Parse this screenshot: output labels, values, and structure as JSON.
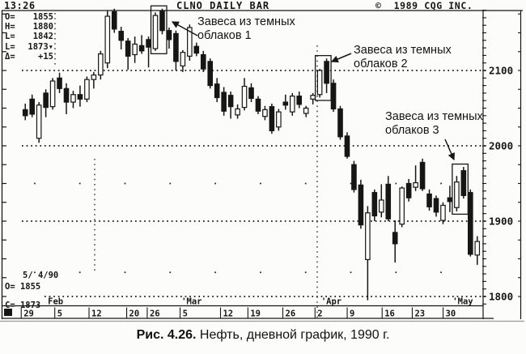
{
  "header": {
    "clock": "13:26",
    "title": "CLNO DAILY BAR",
    "copyright": "©  1989 CQG INC."
  },
  "quote_panel": {
    "rows": [
      {
        "label": "O=",
        "value": "1855"
      },
      {
        "label": "H=",
        "value": "1880"
      },
      {
        "label": "L=",
        "value": "1842"
      },
      {
        "label": "L=",
        "value": "1873▾"
      },
      {
        "label": "Δ=",
        "value": "+15"
      }
    ]
  },
  "annotations": [
    {
      "line1": "Завеса из темных",
      "line2": "облаков 1"
    },
    {
      "line1": "Завеса из темных",
      "line2": "облаков 2"
    },
    {
      "line1": "Завеса из темных",
      "line2": "облаков 3"
    }
  ],
  "footer_panel": {
    "date": "5/ 4/90",
    "open": "O= 1855",
    "close": "C= 1873"
  },
  "caption": {
    "bold": "Рис. 4.26.",
    "text": " Нефть, дневной график, 1990 г."
  },
  "chart_data": {
    "type": "candlestick",
    "title": "CLNO DAILY BAR",
    "symbol": "CLNO",
    "interval": "daily",
    "year": 1990,
    "ylim": [
      1780,
      2185
    ],
    "gridlines": [
      2100,
      2000,
      1900,
      1800
    ],
    "x_ticks": [
      {
        "label": "29",
        "pos": 0
      },
      {
        "label": "5",
        "pos": 4.9
      },
      {
        "label": "12",
        "pos": 9.9
      },
      {
        "label": "20",
        "pos": 15.4
      },
      {
        "label": "26",
        "pos": 18.4
      },
      {
        "label": "5",
        "pos": 23.2
      },
      {
        "label": "12",
        "pos": 29.1
      },
      {
        "label": "19",
        "pos": 33.1
      },
      {
        "label": "26",
        "pos": 38.2
      },
      {
        "label": "2",
        "pos": 42.9
      },
      {
        "label": "9",
        "pos": 47.6
      },
      {
        "label": "16",
        "pos": 52.7
      },
      {
        "label": "23",
        "pos": 57.1
      },
      {
        "label": "30",
        "pos": 61.6
      }
    ],
    "months": [
      {
        "label": "Feb",
        "pos": 3.3
      },
      {
        "label": "'Mar",
        "pos": 22.8
      },
      {
        "label": "'Apr",
        "pos": 43.2
      },
      {
        "label": "'May",
        "pos": 62.4
      }
    ],
    "last_quote": {
      "open": 1855,
      "high": 1880,
      "low": 1842,
      "last": 1873,
      "change": 15,
      "date": "5/ 4/90"
    },
    "candles": [
      [
        2048,
        2056,
        2034,
        2040
      ],
      [
        2062,
        2068,
        2038,
        2042
      ],
      [
        2010,
        2058,
        2004,
        2054
      ],
      [
        2070,
        2075,
        2038,
        2051
      ],
      [
        2052,
        2090,
        2048,
        2086
      ],
      [
        2090,
        2097,
        2070,
        2076
      ],
      [
        2076,
        2083,
        2042,
        2058
      ],
      [
        2058,
        2073,
        2050,
        2068
      ],
      [
        2068,
        2080,
        2052,
        2062
      ],
      [
        2062,
        2092,
        2058,
        2088
      ],
      [
        2088,
        2098,
        2076,
        2094
      ],
      [
        2094,
        2126,
        2088,
        2122
      ],
      [
        2110,
        2180,
        2103,
        2172
      ],
      [
        2178,
        2182,
        2150,
        2155
      ],
      [
        2152,
        2158,
        2128,
        2140
      ],
      [
        2139,
        2143,
        2101,
        2119
      ],
      [
        2121,
        2145,
        2110,
        2135
      ],
      [
        2133,
        2147,
        2122,
        2126
      ],
      [
        2141,
        2145,
        2104,
        2131
      ],
      [
        2129,
        2177,
        2126,
        2173
      ],
      [
        2179,
        2182,
        2148,
        2153
      ],
      [
        2153,
        2157,
        2129,
        2141
      ],
      [
        2149,
        2153,
        2100,
        2112
      ],
      [
        2106,
        2127,
        2098,
        2124
      ],
      [
        2119,
        2161,
        2113,
        2157
      ],
      [
        2132,
        2137,
        2119,
        2123
      ],
      [
        2121,
        2126,
        2098,
        2102
      ],
      [
        2112,
        2116,
        2076,
        2080
      ],
      [
        2082,
        2090,
        2058,
        2064
      ],
      [
        2071,
        2078,
        2040,
        2046
      ],
      [
        2067,
        2072,
        2036,
        2052
      ],
      [
        2041,
        2055,
        2036,
        2049
      ],
      [
        2051,
        2090,
        2047,
        2079
      ],
      [
        2077,
        2083,
        2058,
        2063
      ],
      [
        2062,
        2066,
        2042,
        2046
      ],
      [
        2039,
        2053,
        2034,
        2048
      ],
      [
        2052,
        2056,
        2016,
        2020
      ],
      [
        2025,
        2049,
        2020,
        2045
      ],
      [
        2058,
        2068,
        2048,
        2054
      ],
      [
        2045,
        2070,
        2040,
        2066
      ],
      [
        2066,
        2072,
        2050,
        2055
      ],
      [
        2043,
        2053,
        2038,
        2050
      ],
      [
        2062,
        2070,
        2055,
        2067
      ],
      [
        2068,
        2102,
        2064,
        2100
      ],
      [
        2112,
        2116,
        2070,
        2083
      ],
      [
        2083,
        2088,
        2045,
        2049
      ],
      [
        2049,
        2053,
        2008,
        2012
      ],
      [
        2013,
        2018,
        1983,
        1986
      ],
      [
        1975,
        1980,
        1938,
        1942
      ],
      [
        1948,
        1955,
        1890,
        1895
      ],
      [
        1849,
        1920,
        1795,
        1911
      ],
      [
        1938,
        1942,
        1900,
        1907
      ],
      [
        1912,
        1949,
        1905,
        1928
      ],
      [
        1949,
        1960,
        1900,
        1903
      ],
      [
        1885,
        1901,
        1845,
        1870
      ],
      [
        1896,
        1946,
        1892,
        1944
      ],
      [
        1950,
        1956,
        1926,
        1931
      ],
      [
        1945,
        1974,
        1940,
        1951
      ],
      [
        1978,
        1983,
        1940,
        1943
      ],
      [
        1936,
        1942,
        1914,
        1919
      ],
      [
        1930,
        1934,
        1906,
        1912
      ],
      [
        1901,
        1925,
        1896,
        1921
      ],
      [
        1931,
        1947,
        1912,
        1926
      ],
      [
        1918,
        1960,
        1913,
        1952
      ],
      [
        1967,
        1972,
        1930,
        1934
      ],
      [
        1938,
        1942,
        1853,
        1856
      ],
      [
        1855,
        1880,
        1842,
        1873
      ]
    ],
    "patterns": [
      {
        "name": "Завеса из темных облаков 1",
        "candles": [
          19,
          20
        ]
      },
      {
        "name": "Завеса из темных облаков 2",
        "candles": [
          43,
          44
        ]
      },
      {
        "name": "Завеса из темных облаков 3",
        "candles": [
          63,
          64
        ]
      }
    ]
  }
}
